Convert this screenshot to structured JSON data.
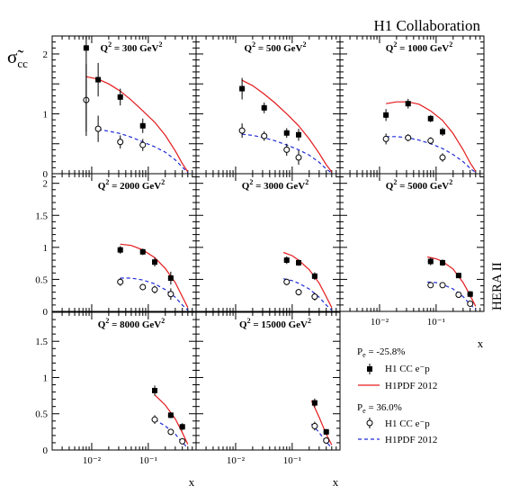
{
  "title": "H1 Collaboration",
  "y_axis_label": "σ̃",
  "y_axis_label_sub": "cc",
  "x_axis_label": "x",
  "side_label": "HERA II",
  "legend": {
    "group1_title": "P",
    "group1_title_sub": "e",
    "group1_title_value": " = -25.8%",
    "group1_data_label": "H1 CC e⁻p",
    "group1_fit_label": "H1PDF 2012",
    "group2_title": "P",
    "group2_title_sub": "e",
    "group2_title_value": " = 36.0%",
    "group2_data_label": "H1 CC e⁻p",
    "group2_fit_label": "H1PDF 2012"
  },
  "tick_labels": {
    "y_top": [
      "0",
      "1",
      "2"
    ],
    "y_mid": [
      "0",
      "0.5",
      "1",
      "1.5",
      "2"
    ],
    "y_bottom": [
      "0",
      "0.5",
      "1",
      "1.5"
    ],
    "x_left": [
      "10⁻²",
      "10⁻¹"
    ],
    "x_right": [
      "10⁻²",
      "10⁻¹"
    ]
  },
  "colors": {
    "neg_fit": "#e31a1c",
    "pos_fit": "#1f2bd6",
    "axis": "#000000"
  },
  "chart_data": {
    "type": "scatter",
    "x_scale": "log",
    "series_styles": {
      "neg_data": "filled square markers with error bars",
      "pos_data": "open circle markers with error bars",
      "neg_fit": "solid red line",
      "pos_fit": "dashed blue line"
    },
    "panels": [
      {
        "id": "q300",
        "label_q": "Q",
        "label_rest": " = 300 GeV",
        "xlim": [
          0.002,
          0.7
        ],
        "ylim": [
          0,
          2.3
        ],
        "neg_data": [
          {
            "x": 0.008,
            "y": 2.1,
            "err": 1.4
          },
          {
            "x": 0.013,
            "y": 1.57,
            "err": 0.28
          },
          {
            "x": 0.032,
            "y": 1.28,
            "err": 0.14
          },
          {
            "x": 0.08,
            "y": 0.8,
            "err": 0.12
          }
        ],
        "pos_data": [
          {
            "x": 0.008,
            "y": 1.23,
            "err": 0.6
          },
          {
            "x": 0.013,
            "y": 0.75,
            "err": 0.22
          },
          {
            "x": 0.032,
            "y": 0.53,
            "err": 0.11
          },
          {
            "x": 0.08,
            "y": 0.48,
            "err": 0.1
          }
        ],
        "neg_fit": [
          [
            0.008,
            1.62
          ],
          [
            0.013,
            1.58
          ],
          [
            0.02,
            1.5
          ],
          [
            0.032,
            1.38
          ],
          [
            0.05,
            1.23
          ],
          [
            0.08,
            1.05
          ],
          [
            0.13,
            0.86
          ],
          [
            0.2,
            0.64
          ],
          [
            0.3,
            0.38
          ],
          [
            0.4,
            0.17
          ],
          [
            0.5,
            0.03
          ]
        ],
        "pos_fit": [
          [
            0.013,
            0.74
          ],
          [
            0.02,
            0.71
          ],
          [
            0.032,
            0.67
          ],
          [
            0.05,
            0.61
          ],
          [
            0.08,
            0.53
          ],
          [
            0.13,
            0.45
          ],
          [
            0.2,
            0.36
          ],
          [
            0.3,
            0.23
          ],
          [
            0.4,
            0.11
          ],
          [
            0.5,
            0.02
          ]
        ]
      },
      {
        "id": "q500",
        "label_q": "Q",
        "label_rest": " = 500 GeV",
        "xlim": [
          0.002,
          0.7
        ],
        "ylim": [
          0,
          2.3
        ],
        "neg_data": [
          {
            "x": 0.013,
            "y": 1.42,
            "err": 0.18
          },
          {
            "x": 0.032,
            "y": 1.1,
            "err": 0.09
          },
          {
            "x": 0.08,
            "y": 0.68,
            "err": 0.08
          },
          {
            "x": 0.13,
            "y": 0.65,
            "err": 0.1
          }
        ],
        "pos_data": [
          {
            "x": 0.013,
            "y": 0.72,
            "err": 0.12
          },
          {
            "x": 0.032,
            "y": 0.63,
            "err": 0.08
          },
          {
            "x": 0.08,
            "y": 0.4,
            "err": 0.1
          },
          {
            "x": 0.13,
            "y": 0.27,
            "err": 0.12
          }
        ],
        "neg_fit": [
          [
            0.013,
            1.56
          ],
          [
            0.02,
            1.47
          ],
          [
            0.032,
            1.33
          ],
          [
            0.05,
            1.18
          ],
          [
            0.08,
            1.0
          ],
          [
            0.13,
            0.8
          ],
          [
            0.2,
            0.58
          ],
          [
            0.3,
            0.34
          ],
          [
            0.4,
            0.15
          ],
          [
            0.5,
            0.03
          ]
        ],
        "pos_fit": [
          [
            0.013,
            0.66
          ],
          [
            0.02,
            0.64
          ],
          [
            0.032,
            0.6
          ],
          [
            0.05,
            0.55
          ],
          [
            0.08,
            0.48
          ],
          [
            0.13,
            0.4
          ],
          [
            0.2,
            0.31
          ],
          [
            0.3,
            0.19
          ],
          [
            0.4,
            0.08
          ],
          [
            0.5,
            0.01
          ]
        ]
      },
      {
        "id": "q1000",
        "label_q": "Q",
        "label_rest": " = 1000 GeV",
        "xlim": [
          0.002,
          0.7
        ],
        "ylim": [
          0,
          2.3
        ],
        "neg_data": [
          {
            "x": 0.013,
            "y": 0.98,
            "err": 0.1
          },
          {
            "x": 0.032,
            "y": 1.17,
            "err": 0.08
          },
          {
            "x": 0.08,
            "y": 0.92,
            "err": 0.06
          },
          {
            "x": 0.13,
            "y": 0.7,
            "err": 0.07
          }
        ],
        "pos_data": [
          {
            "x": 0.013,
            "y": 0.58,
            "err": 0.09
          },
          {
            "x": 0.032,
            "y": 0.6,
            "err": 0.06
          },
          {
            "x": 0.08,
            "y": 0.55,
            "err": 0.06
          },
          {
            "x": 0.13,
            "y": 0.27,
            "err": 0.07
          }
        ],
        "neg_fit": [
          [
            0.013,
            1.17
          ],
          [
            0.02,
            1.2
          ],
          [
            0.032,
            1.2
          ],
          [
            0.05,
            1.16
          ],
          [
            0.08,
            1.05
          ],
          [
            0.13,
            0.89
          ],
          [
            0.2,
            0.67
          ],
          [
            0.3,
            0.4
          ],
          [
            0.4,
            0.18
          ],
          [
            0.5,
            0.04
          ]
        ],
        "pos_fit": [
          [
            0.013,
            0.62
          ],
          [
            0.02,
            0.62
          ],
          [
            0.032,
            0.6
          ],
          [
            0.05,
            0.56
          ],
          [
            0.08,
            0.5
          ],
          [
            0.13,
            0.42
          ],
          [
            0.2,
            0.32
          ],
          [
            0.3,
            0.2
          ],
          [
            0.4,
            0.09
          ],
          [
            0.5,
            0.02
          ]
        ]
      },
      {
        "id": "q2000",
        "label_q": "Q",
        "label_rest": " = 2000 GeV",
        "xlim": [
          0.002,
          0.7
        ],
        "ylim": [
          0,
          2.15
        ],
        "neg_data": [
          {
            "x": 0.032,
            "y": 0.96,
            "err": 0.06
          },
          {
            "x": 0.08,
            "y": 0.93,
            "err": 0.05
          },
          {
            "x": 0.13,
            "y": 0.77,
            "err": 0.07
          },
          {
            "x": 0.25,
            "y": 0.52,
            "err": 0.1
          }
        ],
        "pos_data": [
          {
            "x": 0.032,
            "y": 0.46,
            "err": 0.06
          },
          {
            "x": 0.08,
            "y": 0.38,
            "err": 0.05
          },
          {
            "x": 0.13,
            "y": 0.34,
            "err": 0.06
          },
          {
            "x": 0.25,
            "y": 0.27,
            "err": 0.09
          }
        ],
        "neg_fit": [
          [
            0.032,
            1.05
          ],
          [
            0.05,
            1.03
          ],
          [
            0.08,
            0.96
          ],
          [
            0.13,
            0.84
          ],
          [
            0.2,
            0.67
          ],
          [
            0.3,
            0.45
          ],
          [
            0.4,
            0.23
          ],
          [
            0.5,
            0.06
          ]
        ],
        "pos_fit": [
          [
            0.032,
            0.52
          ],
          [
            0.05,
            0.52
          ],
          [
            0.08,
            0.49
          ],
          [
            0.13,
            0.43
          ],
          [
            0.2,
            0.34
          ],
          [
            0.3,
            0.22
          ],
          [
            0.4,
            0.1
          ],
          [
            0.5,
            0.02
          ]
        ]
      },
      {
        "id": "q3000",
        "label_q": "Q",
        "label_rest": " = 3000 GeV",
        "xlim": [
          0.002,
          0.7
        ],
        "ylim": [
          0,
          2.15
        ],
        "neg_data": [
          {
            "x": 0.08,
            "y": 0.8,
            "err": 0.06
          },
          {
            "x": 0.13,
            "y": 0.76,
            "err": 0.05
          },
          {
            "x": 0.25,
            "y": 0.55,
            "err": 0.06
          }
        ],
        "pos_data": [
          {
            "x": 0.08,
            "y": 0.46,
            "err": 0.05
          },
          {
            "x": 0.13,
            "y": 0.3,
            "err": 0.05
          },
          {
            "x": 0.25,
            "y": 0.23,
            "err": 0.06
          }
        ],
        "neg_fit": [
          [
            0.07,
            0.92
          ],
          [
            0.1,
            0.87
          ],
          [
            0.13,
            0.8
          ],
          [
            0.2,
            0.65
          ],
          [
            0.3,
            0.44
          ],
          [
            0.4,
            0.23
          ],
          [
            0.5,
            0.06
          ]
        ],
        "pos_fit": [
          [
            0.07,
            0.51
          ],
          [
            0.1,
            0.48
          ],
          [
            0.13,
            0.44
          ],
          [
            0.2,
            0.35
          ],
          [
            0.3,
            0.22
          ],
          [
            0.4,
            0.1
          ],
          [
            0.5,
            0.02
          ]
        ]
      },
      {
        "id": "q5000",
        "label_q": "Q",
        "label_rest": " = 5000 GeV",
        "xlim": [
          0.002,
          0.7
        ],
        "ylim": [
          0,
          2.15
        ],
        "neg_data": [
          {
            "x": 0.08,
            "y": 0.78,
            "err": 0.06
          },
          {
            "x": 0.13,
            "y": 0.76,
            "err": 0.05
          },
          {
            "x": 0.25,
            "y": 0.56,
            "err": 0.04
          },
          {
            "x": 0.4,
            "y": 0.27,
            "err": 0.05
          }
        ],
        "pos_data": [
          {
            "x": 0.08,
            "y": 0.41,
            "err": 0.04
          },
          {
            "x": 0.13,
            "y": 0.41,
            "err": 0.04
          },
          {
            "x": 0.25,
            "y": 0.26,
            "err": 0.04
          },
          {
            "x": 0.4,
            "y": 0.12,
            "err": 0.04
          }
        ],
        "neg_fit": [
          [
            0.07,
            0.85
          ],
          [
            0.1,
            0.82
          ],
          [
            0.13,
            0.78
          ],
          [
            0.2,
            0.66
          ],
          [
            0.3,
            0.45
          ],
          [
            0.4,
            0.25
          ],
          [
            0.5,
            0.08
          ]
        ],
        "pos_fit": [
          [
            0.07,
            0.46
          ],
          [
            0.1,
            0.45
          ],
          [
            0.13,
            0.42
          ],
          [
            0.2,
            0.35
          ],
          [
            0.3,
            0.23
          ],
          [
            0.4,
            0.11
          ],
          [
            0.5,
            0.03
          ]
        ]
      },
      {
        "id": "q8000",
        "label_q": "Q",
        "label_rest": " = 8000 GeV",
        "xlim": [
          0.002,
          0.7
        ],
        "ylim": [
          0,
          1.9
        ],
        "neg_data": [
          {
            "x": 0.13,
            "y": 0.82,
            "err": 0.07
          },
          {
            "x": 0.25,
            "y": 0.48,
            "err": 0.04
          },
          {
            "x": 0.4,
            "y": 0.32,
            "err": 0.05
          }
        ],
        "pos_data": [
          {
            "x": 0.13,
            "y": 0.42,
            "err": 0.06
          },
          {
            "x": 0.25,
            "y": 0.25,
            "err": 0.04
          },
          {
            "x": 0.4,
            "y": 0.12,
            "err": 0.04
          }
        ],
        "neg_fit": [
          [
            0.13,
            0.76
          ],
          [
            0.2,
            0.62
          ],
          [
            0.3,
            0.43
          ],
          [
            0.4,
            0.24
          ],
          [
            0.5,
            0.08
          ]
        ],
        "pos_fit": [
          [
            0.13,
            0.42
          ],
          [
            0.2,
            0.33
          ],
          [
            0.3,
            0.22
          ],
          [
            0.4,
            0.1
          ],
          [
            0.5,
            0.03
          ]
        ]
      },
      {
        "id": "q15000",
        "label_q": "Q",
        "label_rest": " = 15000 GeV",
        "xlim": [
          0.002,
          0.7
        ],
        "ylim": [
          0,
          1.9
        ],
        "neg_data": [
          {
            "x": 0.25,
            "y": 0.65,
            "err": 0.06
          },
          {
            "x": 0.4,
            "y": 0.25,
            "err": 0.04
          }
        ],
        "pos_data": [
          {
            "x": 0.25,
            "y": 0.33,
            "err": 0.06
          },
          {
            "x": 0.4,
            "y": 0.13,
            "err": 0.04
          }
        ],
        "neg_fit": [
          [
            0.22,
            0.68
          ],
          [
            0.3,
            0.45
          ],
          [
            0.4,
            0.22
          ],
          [
            0.5,
            0.07
          ]
        ],
        "pos_fit": [
          [
            0.22,
            0.36
          ],
          [
            0.3,
            0.24
          ],
          [
            0.4,
            0.11
          ],
          [
            0.5,
            0.03
          ]
        ]
      }
    ]
  }
}
